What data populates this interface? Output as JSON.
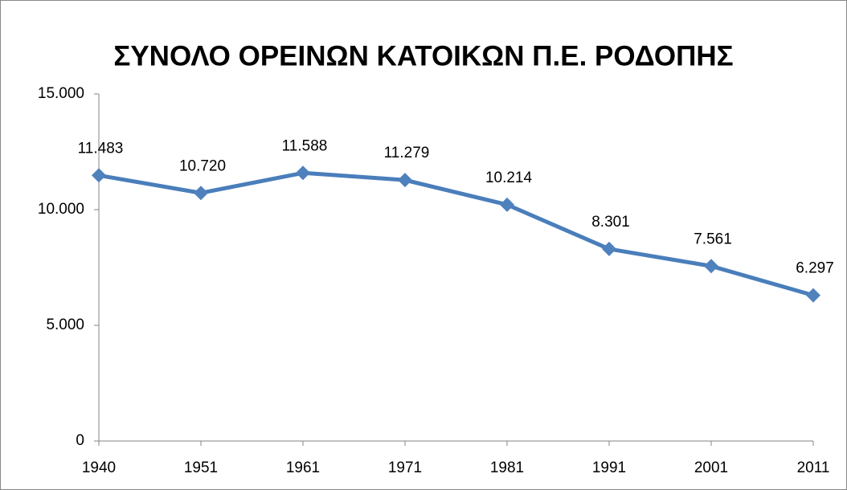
{
  "chart_data": {
    "type": "line",
    "title": "ΣΥΝΟΛΟ ΟΡΕΙΝΩΝ ΚΑΤΟΙΚΩΝ Π.Ε. ΡΟΔΟΠΗΣ",
    "categories": [
      "1940",
      "1951",
      "1961",
      "1971",
      "1981",
      "1991",
      "2001",
      "2011"
    ],
    "values": [
      11483,
      10720,
      11588,
      11279,
      10214,
      8301,
      7561,
      6297
    ],
    "value_labels": [
      "11.483",
      "10.720",
      "11.588",
      "11.279",
      "10.214",
      "8.301",
      "7.561",
      "6.297"
    ],
    "color": "#4a7ebb",
    "ylim": [
      0,
      15000
    ],
    "yticks": [
      0,
      {
        "value": 5000,
        "label": "5.000"
      },
      {
        "value": 10000,
        "label": "10.000"
      },
      {
        "value": 15000,
        "label": "15.000"
      }
    ],
    "grid": false
  }
}
